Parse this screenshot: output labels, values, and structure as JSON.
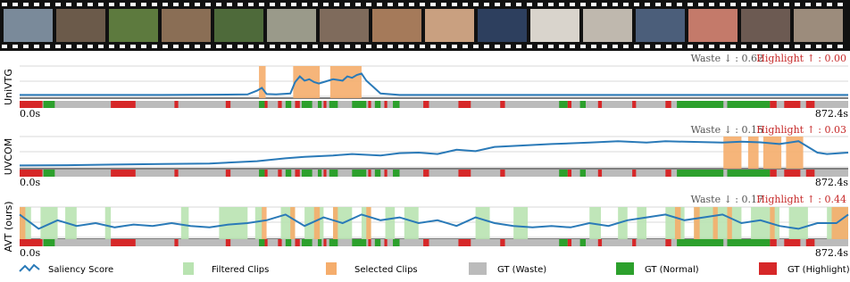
{
  "chart_data": [
    {
      "type": "line",
      "title": "UniVTG",
      "annotations": [
        "Waste ↓ : 0.62",
        "Highlight ↑ : 0.00"
      ],
      "x": [
        0,
        50,
        100,
        150,
        200,
        240,
        250,
        255,
        260,
        270,
        285,
        290,
        295,
        300,
        305,
        310,
        315,
        320,
        330,
        340,
        345,
        350,
        355,
        360,
        365,
        380,
        400,
        500,
        600,
        700,
        800,
        872.4
      ],
      "values": [
        0.05,
        0.05,
        0.05,
        0.05,
        0.06,
        0.07,
        0.2,
        0.3,
        0.08,
        0.07,
        0.1,
        0.5,
        0.7,
        0.55,
        0.6,
        0.5,
        0.45,
        0.5,
        0.6,
        0.55,
        0.7,
        0.65,
        0.75,
        0.8,
        0.55,
        0.1,
        0.05,
        0.05,
        0.05,
        0.05,
        0.05,
        0.05
      ],
      "color": "#2a7ab8",
      "selected_clips": [
        [
          252,
          259
        ],
        [
          288,
          316
        ],
        [
          327,
          360
        ]
      ],
      "xlim": [
        0,
        872.4
      ],
      "ylim": [
        0,
        1
      ],
      "xticks": [
        {
          "value": 0,
          "label": "0.0s"
        },
        {
          "value": 872.4,
          "label": "872.4s"
        }
      ]
    },
    {
      "type": "line",
      "title": "UVCOM",
      "annotations": [
        "Waste ↓ : 0.15",
        "Highlight ↑ : 0.03"
      ],
      "x": [
        0,
        50,
        100,
        150,
        200,
        250,
        280,
        300,
        330,
        350,
        380,
        400,
        420,
        440,
        460,
        480,
        500,
        530,
        560,
        600,
        630,
        660,
        680,
        700,
        720,
        740,
        760,
        780,
        800,
        820,
        840,
        850,
        872.4
      ],
      "values": [
        0.05,
        0.06,
        0.08,
        0.1,
        0.12,
        0.2,
        0.3,
        0.35,
        0.4,
        0.45,
        0.4,
        0.48,
        0.5,
        0.45,
        0.6,
        0.55,
        0.7,
        0.75,
        0.8,
        0.85,
        0.9,
        0.85,
        0.9,
        0.88,
        0.87,
        0.85,
        0.88,
        0.86,
        0.8,
        0.9,
        0.5,
        0.45,
        0.5
      ],
      "color": "#2a7ab8",
      "selected_clips": [
        [
          741,
          760
        ],
        [
          767,
          778
        ],
        [
          783,
          802
        ],
        [
          807,
          825
        ]
      ],
      "xlim": [
        0,
        872.4
      ],
      "ylim": [
        0,
        1
      ],
      "xticks": [
        {
          "value": 0,
          "label": "0.0s"
        },
        {
          "value": 872.4,
          "label": "872.4s"
        }
      ]
    },
    {
      "type": "line",
      "title": "AVT (ours)",
      "annotations": [
        "Waste ↓ : 0.17",
        "Highlight ↑ : 0.44"
      ],
      "x": [
        0,
        20,
        40,
        60,
        80,
        100,
        120,
        140,
        160,
        180,
        200,
        220,
        240,
        260,
        280,
        300,
        320,
        340,
        360,
        380,
        400,
        420,
        440,
        460,
        480,
        500,
        520,
        540,
        560,
        580,
        600,
        620,
        640,
        660,
        680,
        700,
        720,
        740,
        760,
        780,
        800,
        820,
        840,
        860,
        872.4
      ],
      "values": [
        0.8,
        0.3,
        0.6,
        0.4,
        0.5,
        0.35,
        0.45,
        0.4,
        0.5,
        0.4,
        0.35,
        0.45,
        0.5,
        0.6,
        0.8,
        0.4,
        0.7,
        0.5,
        0.8,
        0.6,
        0.7,
        0.5,
        0.6,
        0.4,
        0.7,
        0.5,
        0.4,
        0.35,
        0.4,
        0.35,
        0.5,
        0.4,
        0.6,
        0.7,
        0.8,
        0.6,
        0.7,
        0.8,
        0.5,
        0.6,
        0.4,
        0.3,
        0.5,
        0.5,
        0.8
      ],
      "color": "#2a7ab8",
      "filtered_clips": [
        [
          0,
          12
        ],
        [
          22,
          40
        ],
        [
          48,
          60
        ],
        [
          90,
          96
        ],
        [
          170,
          178
        ],
        [
          210,
          240
        ],
        [
          248,
          256
        ],
        [
          275,
          290
        ],
        [
          300,
          320
        ],
        [
          330,
          350
        ],
        [
          360,
          370
        ],
        [
          385,
          395
        ],
        [
          405,
          420
        ],
        [
          480,
          495
        ],
        [
          520,
          535
        ],
        [
          600,
          612
        ],
        [
          630,
          640
        ],
        [
          650,
          660
        ],
        [
          680,
          700
        ],
        [
          710,
          760
        ],
        [
          770,
          800
        ],
        [
          810,
          830
        ],
        [
          850,
          872.4
        ]
      ],
      "selected_clips": [
        [
          0,
          6
        ],
        [
          255,
          260
        ],
        [
          285,
          290
        ],
        [
          310,
          316
        ],
        [
          330,
          335
        ],
        [
          365,
          370
        ],
        [
          690,
          696
        ],
        [
          710,
          716
        ],
        [
          730,
          735
        ],
        [
          745,
          750
        ],
        [
          790,
          795
        ],
        [
          855,
          872.4
        ]
      ],
      "xlim": [
        0,
        872.4
      ],
      "ylim": [
        0,
        1
      ],
      "xticks": [
        {
          "value": 0,
          "label": "0.0s"
        },
        {
          "value": 872.4,
          "label": "872.4s"
        }
      ]
    }
  ],
  "ground_truth": {
    "normal": [
      [
        25,
        37
      ],
      [
        252,
        258
      ],
      [
        280,
        286
      ],
      [
        297,
        308
      ],
      [
        314,
        318
      ],
      [
        326,
        335
      ],
      [
        350,
        365
      ],
      [
        374,
        380
      ],
      [
        393,
        400
      ],
      [
        568,
        577
      ],
      [
        590,
        596
      ],
      [
        692,
        741
      ],
      [
        745,
        790
      ]
    ],
    "highlight": [
      [
        0,
        24
      ],
      [
        96,
        122
      ],
      [
        163,
        167
      ],
      [
        217,
        222
      ],
      [
        258,
        261
      ],
      [
        272,
        276
      ],
      [
        290,
        295
      ],
      [
        320,
        323
      ],
      [
        367,
        370
      ],
      [
        384,
        387
      ],
      [
        425,
        431
      ],
      [
        462,
        475
      ],
      [
        506,
        511
      ],
      [
        577,
        581
      ],
      [
        609,
        613
      ],
      [
        645,
        649
      ],
      [
        680,
        686
      ],
      [
        790,
        797
      ],
      [
        805,
        822
      ],
      [
        828,
        837
      ]
    ]
  },
  "legend": [
    {
      "name": "Saliency Score",
      "color": "#2a7ab8"
    },
    {
      "name": "Filtered Clips",
      "color": "#b9e3b1"
    },
    {
      "name": "Selected Clips",
      "color": "#f5ad6c"
    },
    {
      "name": "GT (Waste)",
      "color": "#bbbbbb"
    },
    {
      "name": "GT (Normal)",
      "color": "#2ca02c"
    },
    {
      "name": "GT (Highlight)",
      "color": "#d62728"
    }
  ]
}
